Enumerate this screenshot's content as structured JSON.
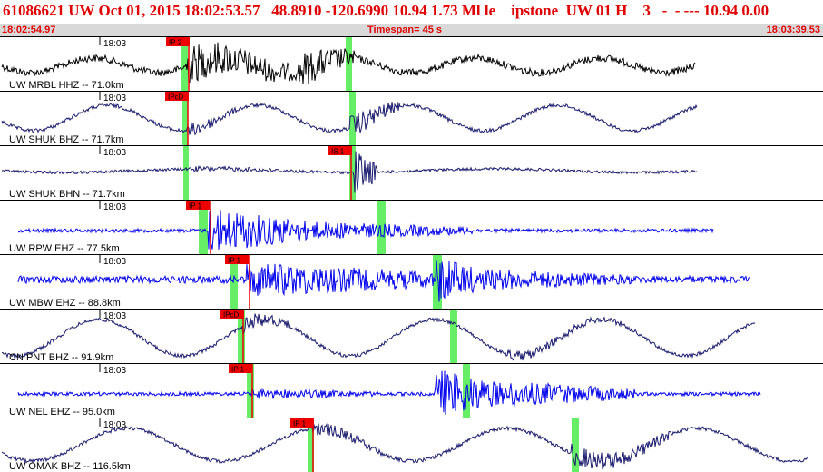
{
  "header": {
    "title": "61086621 UW Oct 01, 2015 18:02:53.57   48.8910 -120.6990 10.94 1.73 Ml le    ipstone  UW 01 H    3   -  - --- 10.94 0.00",
    "start_time": "18:02:54.97",
    "timespan": "Timespan=  45 s",
    "end_time": "18:03:39.53"
  },
  "colors": {
    "title": "#e00000",
    "subbar_bg": "#d9d9d9",
    "trace_black": "#000000",
    "trace_navy": "#1a1a6e",
    "trace_blue": "#0000ee",
    "pick_flag": "#ee0000",
    "pick_window": "#66ee66"
  },
  "panels": [
    {
      "tick_label": "18:03",
      "station": "UW MRBL HHZ -- 71.0km",
      "pick_label": "IP 2",
      "color": "trace_black"
    },
    {
      "tick_label": "18:03",
      "station": "UW SHUK BHZ -- 71.7km",
      "pick_label": "IPcD",
      "color": "trace_navy"
    },
    {
      "tick_label": "18:03",
      "station": "UW SHUK BHN -- 71.7km",
      "pick_label": "IS 1",
      "color": "trace_navy"
    },
    {
      "tick_label": "18:03",
      "station": "UW RPW EHZ -- 77.5km",
      "pick_label": "IP 1",
      "color": "trace_blue"
    },
    {
      "tick_label": "18:03",
      "station": "UW MBW EHZ -- 88.8km",
      "pick_label": "IP 1",
      "color": "trace_blue"
    },
    {
      "tick_label": "18:03",
      "station": "CN PNT BHZ -- 91.9km",
      "pick_label": "IPcD",
      "color": "trace_navy"
    },
    {
      "tick_label": "18:03",
      "station": "UW NEL EHZ -- 95.0km",
      "pick_label": "IP 1",
      "color": "trace_blue"
    },
    {
      "tick_label": "18:03",
      "station": "UW OMAK BHZ -- 116.5km",
      "pick_label": "IP 1",
      "color": "trace_navy"
    }
  ]
}
